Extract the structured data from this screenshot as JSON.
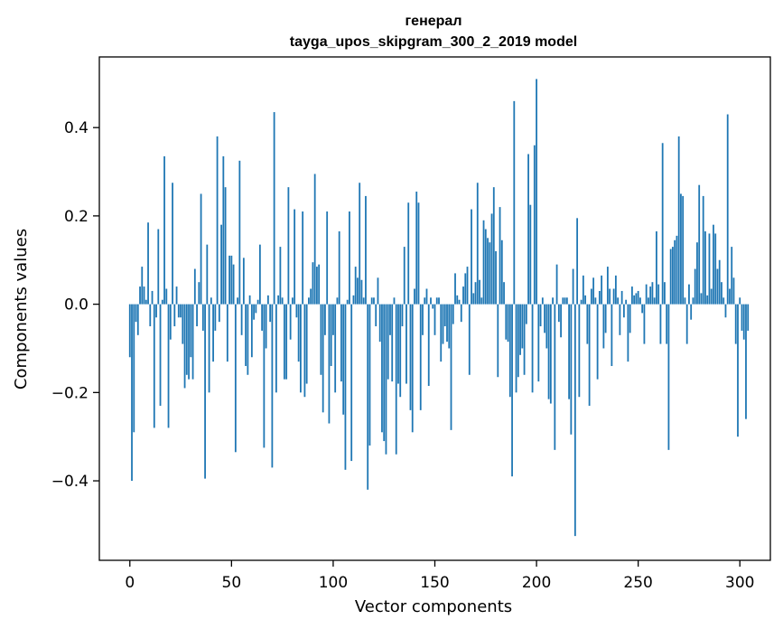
{
  "chart_data": {
    "type": "bar",
    "title": "генерал",
    "subtitle": "tayga_upos_skipgram_300_2_2019 model",
    "xlabel": "Vector components",
    "ylabel": "Components values",
    "xlim": [
      -15,
      315
    ],
    "ylim": [
      -0.58,
      0.56
    ],
    "xticks": [
      0,
      50,
      100,
      150,
      200,
      250,
      300
    ],
    "xtick_labels": [
      "0",
      "50",
      "100",
      "150",
      "200",
      "250",
      "300"
    ],
    "yticks": [
      -0.4,
      -0.2,
      0.0,
      0.2,
      0.4
    ],
    "ytick_labels": [
      "−0.4",
      "−0.2",
      "0.0",
      "0.2",
      "0.4"
    ],
    "grid": false,
    "bar_color": "#1f77b4",
    "x_start": 0,
    "values": [
      -0.12,
      -0.4,
      -0.29,
      -0.04,
      -0.07,
      0.04,
      0.085,
      0.04,
      0.01,
      0.185,
      -0.05,
      0.03,
      -0.28,
      -0.03,
      0.17,
      -0.23,
      0.01,
      0.335,
      0.035,
      -0.28,
      -0.08,
      0.275,
      -0.05,
      0.04,
      -0.03,
      -0.03,
      -0.09,
      -0.19,
      -0.16,
      -0.17,
      -0.12,
      -0.17,
      0.08,
      -0.05,
      0.05,
      0.25,
      -0.06,
      -0.395,
      0.135,
      -0.2,
      0.015,
      -0.13,
      -0.06,
      0.38,
      -0.04,
      0.18,
      0.335,
      0.265,
      -0.13,
      0.11,
      0.11,
      0.09,
      -0.335,
      0.015,
      0.325,
      -0.07,
      0.105,
      -0.14,
      -0.16,
      0.02,
      -0.12,
      -0.035,
      -0.02,
      0.01,
      0.135,
      -0.06,
      -0.325,
      -0.1,
      0.02,
      -0.04,
      -0.37,
      0.435,
      -0.2,
      0.02,
      0.13,
      0.015,
      -0.17,
      -0.17,
      0.265,
      -0.08,
      0.015,
      0.215,
      -0.03,
      -0.13,
      -0.2,
      0.21,
      -0.21,
      -0.18,
      0.015,
      0.035,
      0.095,
      0.295,
      0.085,
      0.09,
      -0.16,
      -0.245,
      -0.07,
      0.21,
      -0.27,
      -0.14,
      -0.07,
      -0.2,
      0.015,
      0.165,
      -0.175,
      -0.25,
      -0.375,
      0.01,
      0.21,
      -0.355,
      0.02,
      0.085,
      0.06,
      0.275,
      0.055,
      0.015,
      0.245,
      -0.42,
      -0.32,
      0.015,
      0.015,
      -0.05,
      0.06,
      -0.085,
      -0.29,
      -0.31,
      -0.34,
      -0.17,
      -0.07,
      -0.175,
      0.015,
      -0.34,
      -0.18,
      -0.21,
      -0.05,
      0.13,
      -0.18,
      0.23,
      -0.24,
      -0.29,
      0.035,
      0.255,
      0.23,
      -0.24,
      -0.07,
      0.015,
      0.035,
      -0.185,
      0.015,
      -0.01,
      -0.07,
      0.015,
      0.015,
      -0.13,
      -0.09,
      -0.05,
      -0.085,
      -0.1,
      -0.285,
      -0.045,
      0.07,
      0.02,
      0.01,
      -0.04,
      0.04,
      0.07,
      0.085,
      -0.16,
      0.215,
      0.025,
      0.05,
      0.275,
      0.055,
      0.015,
      0.19,
      0.17,
      0.15,
      0.14,
      0.205,
      0.265,
      0.12,
      -0.165,
      0.22,
      0.145,
      0.05,
      -0.08,
      -0.085,
      -0.21,
      -0.39,
      0.46,
      -0.2,
      -0.165,
      -0.115,
      -0.1,
      -0.16,
      -0.045,
      0.34,
      0.225,
      -0.2,
      0.36,
      0.51,
      -0.175,
      -0.05,
      0.015,
      -0.065,
      -0.1,
      -0.215,
      -0.225,
      0.015,
      -0.33,
      0.09,
      -0.04,
      -0.075,
      0.015,
      0.015,
      0.015,
      -0.215,
      -0.295,
      0.08,
      -0.525,
      0.195,
      -0.21,
      0.01,
      0.065,
      0.02,
      -0.09,
      -0.23,
      0.035,
      0.06,
      0.015,
      -0.17,
      0.03,
      0.065,
      -0.1,
      -0.065,
      0.085,
      0.035,
      -0.14,
      0.035,
      0.065,
      0.015,
      -0.07,
      0.03,
      -0.03,
      0.01,
      -0.13,
      -0.065,
      0.04,
      0.02,
      0.025,
      0.03,
      0.015,
      -0.02,
      -0.09,
      0.045,
      0.015,
      0.04,
      0.05,
      0.015,
      0.165,
      0.045,
      -0.09,
      0.365,
      0.05,
      -0.09,
      -0.33,
      0.125,
      0.13,
      0.145,
      0.155,
      0.38,
      0.25,
      0.245,
      0.015,
      -0.09,
      0.045,
      -0.035,
      0.015,
      0.08,
      0.14,
      0.27,
      0.025,
      0.245,
      0.165,
      0.02,
      0.16,
      0.035,
      0.18,
      0.16,
      0.08,
      0.1,
      0.05,
      0.015,
      -0.03,
      0.43,
      0.035,
      0.13,
      0.06,
      -0.09,
      -0.3,
      0.015,
      -0.06,
      -0.08,
      -0.26,
      -0.06
    ]
  }
}
